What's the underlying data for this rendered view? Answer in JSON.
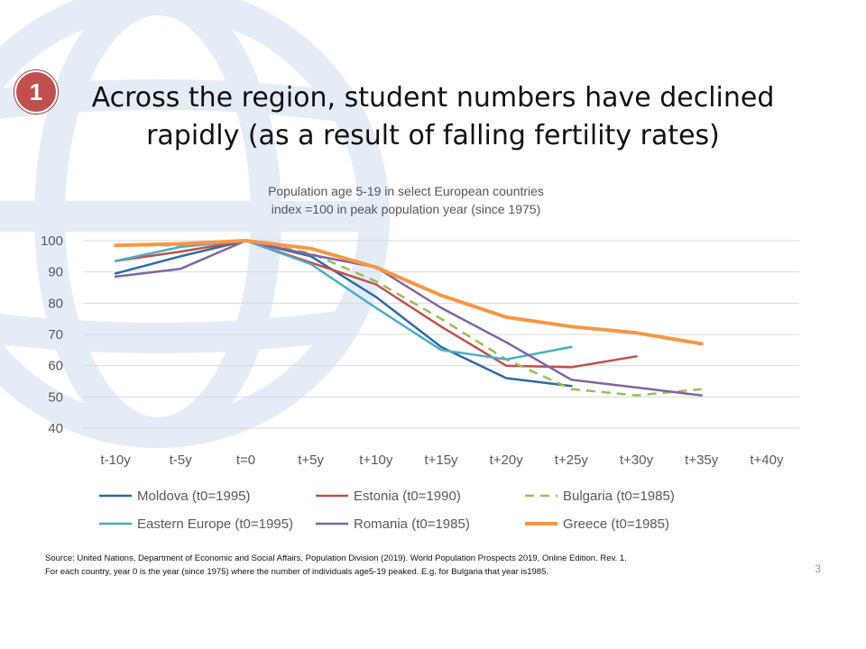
{
  "slide": {
    "badge": "1",
    "title_line1": "Across the region, student numbers have declined",
    "title_line2": "rapidly (as a result of falling fertility rates)",
    "source_line1": "Source: United Nations, Department of Economic and Social Affairs, Population Division (2019). World Population Prospects 2019, Online Edition. Rev. 1.",
    "source_line2": "For each country,  year 0 is the year (since 1975) where the number of individuals age5-19 peaked.  E.g. for Bulgaria that year is1985.",
    "page_number": "3"
  },
  "chart_data": {
    "type": "line",
    "title_line1": "Population age 5-19 in select European countries",
    "title_line2": "index =100 in peak population year (since 1975)",
    "xlabel": "",
    "ylabel": "",
    "categories": [
      "t-10y",
      "t-5y",
      "t=0",
      "t+5y",
      "t+10y",
      "t+15y",
      "t+20y",
      "t+25y",
      "t+30y",
      "t+35y",
      "t+40y"
    ],
    "ylim": [
      40,
      100
    ],
    "yticks": [
      40,
      50,
      60,
      70,
      80,
      90,
      100
    ],
    "grid": true,
    "legend_position": "bottom",
    "series": [
      {
        "name": "Moldova (t0=1995)",
        "color": "#2e6aa3",
        "dash": false,
        "width": 2.5,
        "values": [
          89.5,
          95,
          100,
          95,
          82,
          66,
          56,
          53.5,
          null,
          null,
          null
        ]
      },
      {
        "name": "Estonia (t0=1990)",
        "color": "#c0504d",
        "dash": false,
        "width": 2.5,
        "values": [
          93.5,
          96.5,
          100,
          93,
          86,
          72.5,
          60,
          59.5,
          63,
          null,
          null
        ]
      },
      {
        "name": "Bulgaria (t0=1985)",
        "color": "#9bbb59",
        "dash": true,
        "width": 2.5,
        "values": [
          98.5,
          98.5,
          100,
          96,
          87,
          75,
          62,
          52.5,
          50.5,
          52.5,
          null
        ]
      },
      {
        "name": "Eastern Europe (t0=1995)",
        "color": "#4bacc6",
        "dash": false,
        "width": 2.5,
        "values": [
          93.5,
          98,
          100,
          92.5,
          78.5,
          65,
          62,
          66,
          null,
          null,
          null
        ]
      },
      {
        "name": "Romania (t0=1985)",
        "color": "#8064a2",
        "dash": false,
        "width": 2.5,
        "values": [
          88.5,
          91,
          100,
          95.5,
          91.5,
          78.5,
          67.5,
          55.5,
          53,
          50.5,
          null
        ]
      },
      {
        "name": "Greece (t0=1985)",
        "color": "#f79646",
        "dash": false,
        "width": 4,
        "values": [
          98.5,
          99,
          100,
          97.5,
          91.5,
          82.5,
          75.5,
          72.5,
          70.5,
          67,
          null
        ]
      }
    ]
  }
}
